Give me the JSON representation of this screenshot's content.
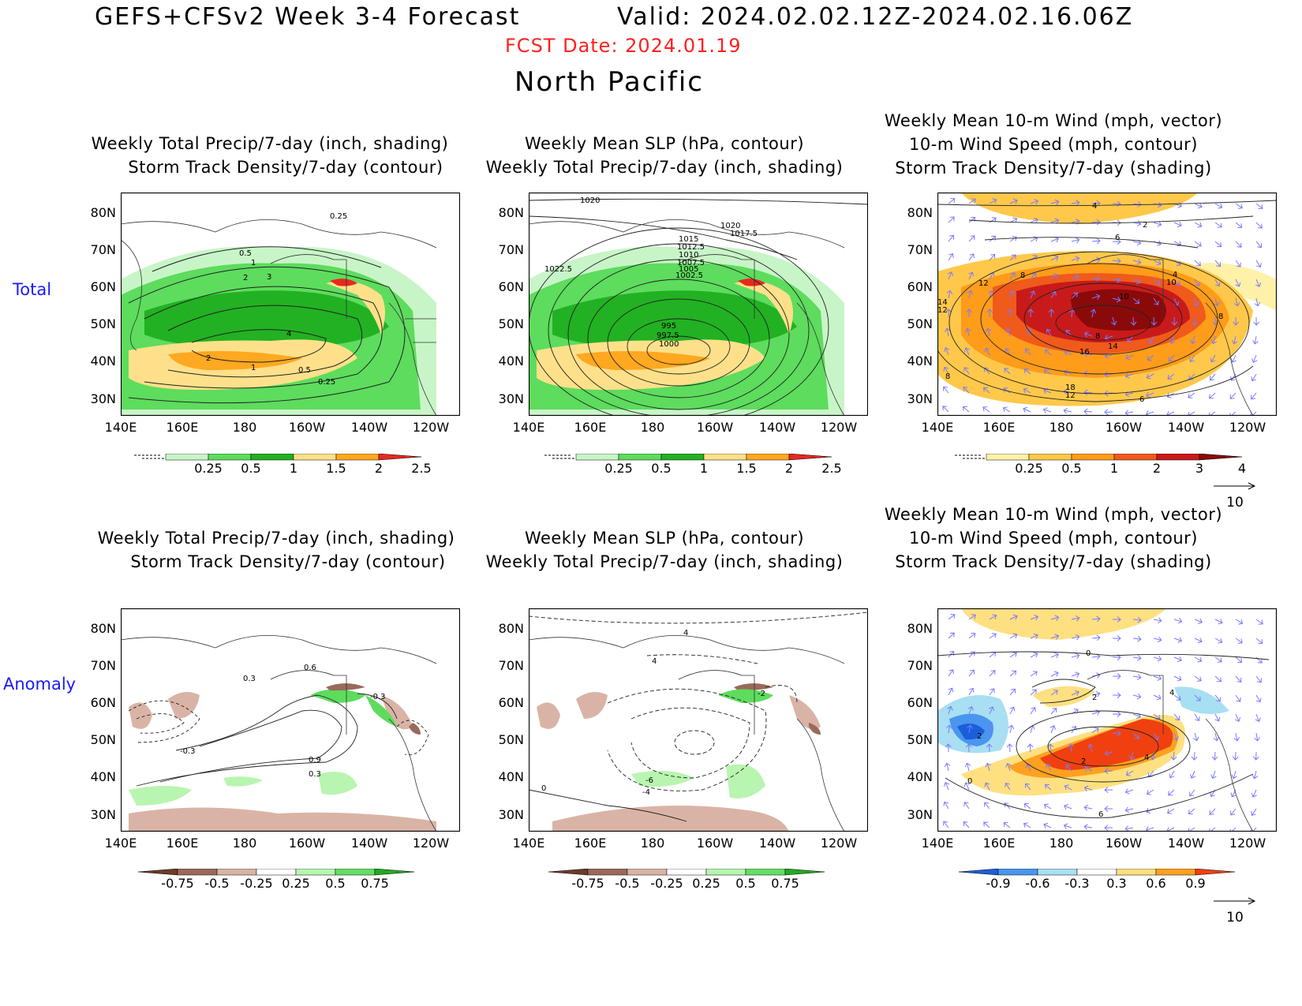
{
  "header": {
    "title": "GEFS+CFSv2 Week 3-4 Forecast",
    "valid": "Valid: 2024.02.02.12Z-2024.02.16.06Z",
    "fcst_date": "FCST Date: 2024.01.19",
    "region": "North Pacific"
  },
  "rows": [
    {
      "label": "Total"
    },
    {
      "label": "Anomaly"
    }
  ],
  "panels": {
    "p1": {
      "title1": "Weekly Total Precip/7-day (inch, shading)",
      "title2": "Storm Track Density/7-day (contour)"
    },
    "p2": {
      "title1": "Weekly Mean SLP (hPa, contour)",
      "title2": "Weekly Total Precip/7-day (inch, shading)"
    },
    "p3": {
      "title1": "Weekly Mean 10-m Wind (mph, vector)",
      "title2": "10-m Wind Speed (mph, contour)",
      "title3": "Storm Track Density/7-day (shading)"
    }
  },
  "axes": {
    "lat_labels": [
      "80N",
      "70N",
      "60N",
      "50N",
      "40N",
      "30N"
    ],
    "lon_labels": [
      "140E",
      "160E",
      "180",
      "160W",
      "140W",
      "120W"
    ]
  },
  "colorbars": {
    "precip_total": {
      "ticks": [
        "0.25",
        "0.5",
        "1",
        "1.5",
        "2",
        "2.5"
      ],
      "colors": [
        "#c8f5c8",
        "#5ddc5d",
        "#22b122",
        "#ffe08a",
        "#ffa820",
        "#e8281e"
      ]
    },
    "storm_total": {
      "ticks": [
        "0.25",
        "0.5",
        "1",
        "2",
        "3",
        "4"
      ],
      "colors": [
        "#fff1a8",
        "#ffc84a",
        "#ff9c1a",
        "#f05a1a",
        "#c81a1a",
        "#8a0a0a"
      ]
    },
    "precip_anom": {
      "ticks": [
        "-0.75",
        "-0.5",
        "-0.25",
        "0.25",
        "0.5",
        "0.75"
      ],
      "colors": [
        "#6e3a2a",
        "#9a6a5a",
        "#d9b4a6",
        "#ffffff",
        "#b8f5b0",
        "#66dd66",
        "#22aa22"
      ]
    },
    "storm_anom": {
      "ticks": [
        "-0.9",
        "-0.6",
        "-0.3",
        "0.3",
        "0.6",
        "0.9"
      ],
      "colors": [
        "#1a5fd9",
        "#4a95ee",
        "#a8dff2",
        "#ffffff",
        "#ffe080",
        "#ffa020",
        "#f04010"
      ]
    }
  },
  "vector_ref": "10",
  "contour_labels": {
    "p1_total": [
      "0.25",
      "0.5",
      "1",
      "2",
      "3",
      "4",
      "2",
      "1",
      "0.5",
      "0.25"
    ],
    "p2_total": [
      "1020",
      "1020",
      "1017.5",
      "1015",
      "1012.5",
      "1010",
      "1007.5",
      "1005",
      "1002.5",
      "1022.5",
      "995",
      "997.5",
      "1000"
    ],
    "p3_total": [
      "4",
      "2",
      "6",
      "8",
      "12",
      "4",
      "10",
      "10",
      "14",
      "12",
      "8",
      "8",
      "14",
      "16",
      "18",
      "12",
      "6",
      "8"
    ],
    "p1_anom": [
      "0.6",
      "0.3",
      "-0.3",
      "-0.3",
      "0.9",
      "0.3"
    ],
    "p2_anom": [
      "4",
      "4",
      "-2",
      "-6",
      "-4",
      "0"
    ],
    "p3_anom": [
      "0",
      "2",
      "2",
      "4",
      "2",
      "4",
      "0",
      "6"
    ]
  },
  "colors": {
    "fcst_date": "#ff2020",
    "row_label": "#1a1aff",
    "vector": "#7a7aff"
  }
}
